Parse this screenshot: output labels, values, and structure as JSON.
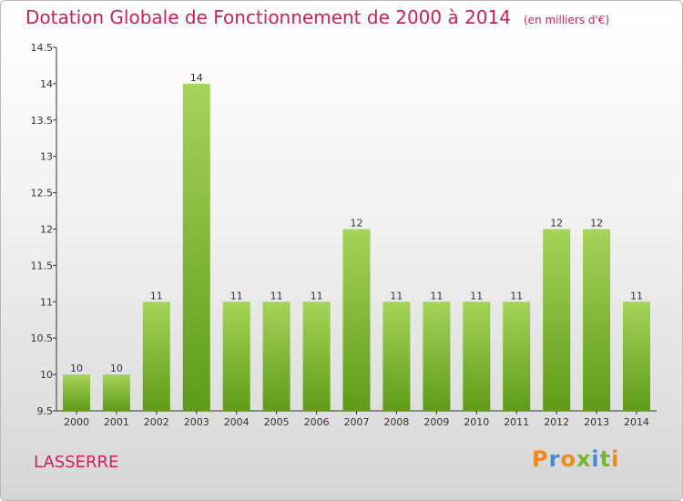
{
  "title": "Dotation Globale de Fonctionnement de 2000 à 2014",
  "subtitle": "(en milliers d'€)",
  "commune": "LASSERRE",
  "brand": "Proxiti",
  "colors": {
    "title": "#cc1f5c",
    "bar_top": "#a6d35a",
    "bar_bottom": "#5e9b18",
    "brand_letters": [
      "#f08a17",
      "#3a8fd6",
      "#f08a17",
      "#7ab52b",
      "#3a8fd6",
      "#7ab52b",
      "#f08a17"
    ]
  },
  "chart_data": {
    "type": "bar",
    "categories": [
      "2000",
      "2001",
      "2002",
      "2003",
      "2004",
      "2005",
      "2006",
      "2007",
      "2008",
      "2009",
      "2010",
      "2011",
      "2012",
      "2013",
      "2014"
    ],
    "values": [
      10,
      10,
      11,
      14,
      11,
      11,
      11,
      12,
      11,
      11,
      11,
      11,
      12,
      12,
      11
    ],
    "data_labels": [
      "10",
      "10",
      "11",
      "14",
      "11",
      "11",
      "11",
      "12",
      "11",
      "11",
      "11",
      "11",
      "12",
      "12",
      "11"
    ],
    "ylim": [
      9.5,
      14.5
    ],
    "yticks": [
      "9.5",
      "10",
      "10.5",
      "11",
      "11.5",
      "12",
      "12.5",
      "13",
      "13.5",
      "14",
      "14.5"
    ],
    "grid": false,
    "xlabel": "",
    "ylabel": ""
  }
}
